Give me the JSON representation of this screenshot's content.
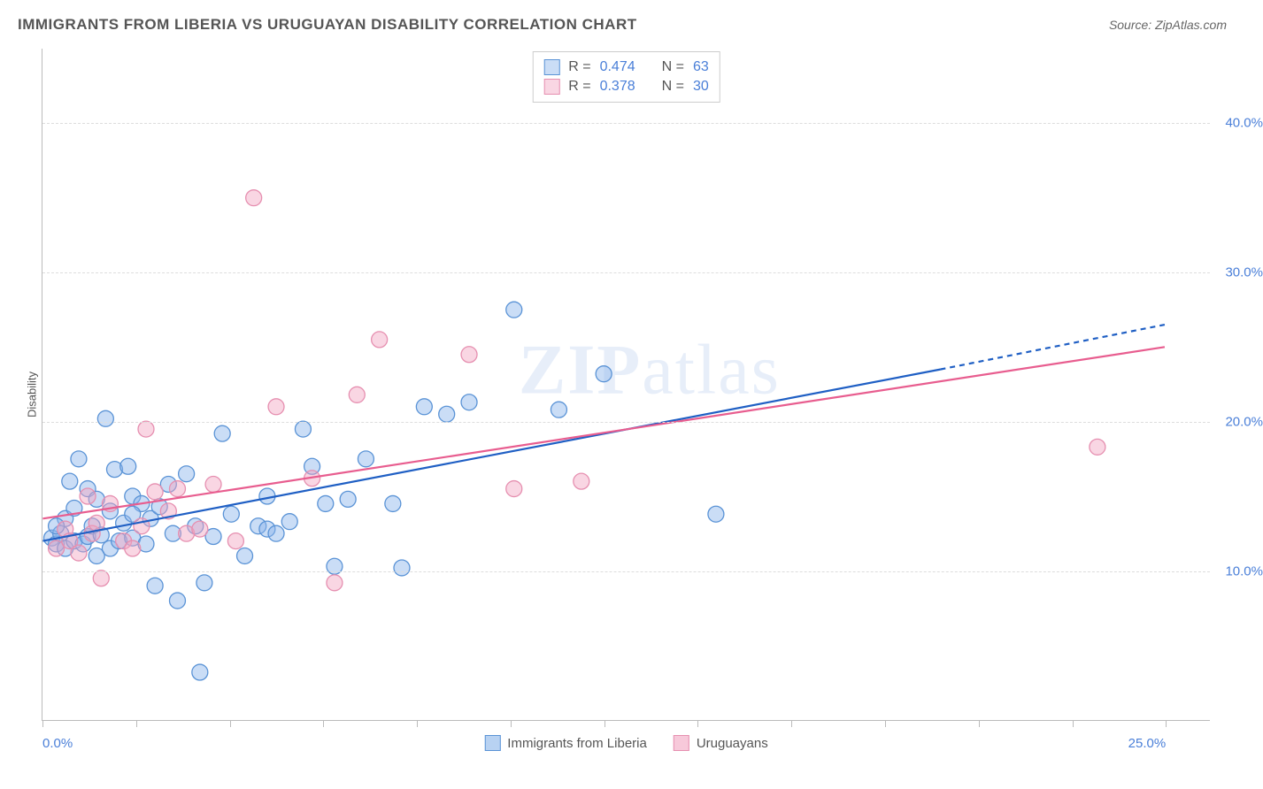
{
  "title": "IMMIGRANTS FROM LIBERIA VS URUGUAYAN DISABILITY CORRELATION CHART",
  "source_label": "Source: ZipAtlas.com",
  "ylabel": "Disability",
  "watermark": {
    "part1": "ZIP",
    "part2": "atlas"
  },
  "chart": {
    "type": "scatter",
    "xlim": [
      0,
      26
    ],
    "ylim": [
      0,
      45
    ],
    "x_ticks": [
      0,
      12.5,
      25
    ],
    "x_tick_labels": [
      "0.0%",
      "",
      "25.0%"
    ],
    "x_minor_ticks": [
      2.08,
      4.17,
      6.25,
      8.33,
      10.42,
      14.58,
      16.67,
      18.75,
      20.83,
      22.92
    ],
    "y_gridlines": [
      10,
      20,
      30,
      40
    ],
    "y_tick_labels": [
      "10.0%",
      "20.0%",
      "30.0%",
      "40.0%"
    ],
    "grid_color": "#dddddd",
    "background": "#ffffff",
    "marker_radius": 9,
    "marker_stroke_width": 1.3,
    "line_width": 2.2,
    "series": [
      {
        "name": "Immigrants from Liberia",
        "fill": "rgba(137,180,234,0.45)",
        "stroke": "#5a93d6",
        "line_color": "#1f5fc4",
        "R": "0.474",
        "N": "63",
        "regression": {
          "x1": 0,
          "y1": 12.0,
          "x2": 20,
          "y2": 23.5,
          "x3": 25,
          "y3": 26.5
        },
        "points": [
          [
            0.2,
            12.2
          ],
          [
            0.3,
            11.8
          ],
          [
            0.4,
            12.5
          ],
          [
            0.5,
            13.5
          ],
          [
            0.5,
            11.5
          ],
          [
            0.6,
            16.0
          ],
          [
            0.7,
            14.2
          ],
          [
            0.7,
            12.0
          ],
          [
            0.8,
            17.5
          ],
          [
            0.9,
            11.8
          ],
          [
            1.0,
            12.3
          ],
          [
            1.0,
            15.5
          ],
          [
            1.1,
            13.0
          ],
          [
            1.2,
            11.0
          ],
          [
            1.3,
            12.4
          ],
          [
            1.4,
            20.2
          ],
          [
            1.5,
            14.0
          ],
          [
            1.5,
            11.5
          ],
          [
            1.6,
            16.8
          ],
          [
            1.7,
            12.0
          ],
          [
            1.8,
            13.2
          ],
          [
            1.9,
            17.0
          ],
          [
            2.0,
            12.2
          ],
          [
            2.0,
            15.0
          ],
          [
            2.2,
            14.5
          ],
          [
            2.3,
            11.8
          ],
          [
            2.4,
            13.5
          ],
          [
            2.5,
            9.0
          ],
          [
            2.6,
            14.3
          ],
          [
            2.8,
            15.8
          ],
          [
            2.9,
            12.5
          ],
          [
            3.0,
            8.0
          ],
          [
            3.2,
            16.5
          ],
          [
            3.4,
            13.0
          ],
          [
            3.5,
            3.2
          ],
          [
            3.6,
            9.2
          ],
          [
            3.8,
            12.3
          ],
          [
            4.0,
            19.2
          ],
          [
            4.2,
            13.8
          ],
          [
            4.5,
            11.0
          ],
          [
            4.8,
            13.0
          ],
          [
            5.0,
            15.0
          ],
          [
            5.0,
            12.8
          ],
          [
            5.2,
            12.5
          ],
          [
            5.5,
            13.3
          ],
          [
            5.8,
            19.5
          ],
          [
            6.0,
            17.0
          ],
          [
            6.3,
            14.5
          ],
          [
            6.5,
            10.3
          ],
          [
            6.8,
            14.8
          ],
          [
            7.2,
            17.5
          ],
          [
            7.8,
            14.5
          ],
          [
            8.0,
            10.2
          ],
          [
            8.5,
            21.0
          ],
          [
            9.0,
            20.5
          ],
          [
            9.5,
            21.3
          ],
          [
            10.5,
            27.5
          ],
          [
            11.5,
            20.8
          ],
          [
            12.5,
            23.2
          ],
          [
            15.0,
            13.8
          ],
          [
            2.0,
            13.8
          ],
          [
            1.2,
            14.8
          ],
          [
            0.3,
            13.0
          ]
        ]
      },
      {
        "name": "Uruguayans",
        "fill": "rgba(242,165,193,0.45)",
        "stroke": "#e68fb0",
        "line_color": "#e85d8f",
        "R": "0.378",
        "N": "30",
        "regression": {
          "x1": 0,
          "y1": 13.5,
          "x2": 25,
          "y2": 25.0
        },
        "points": [
          [
            0.3,
            11.5
          ],
          [
            0.5,
            12.8
          ],
          [
            0.6,
            12.0
          ],
          [
            0.8,
            11.2
          ],
          [
            1.0,
            15.0
          ],
          [
            1.1,
            12.5
          ],
          [
            1.2,
            13.2
          ],
          [
            1.3,
            9.5
          ],
          [
            1.5,
            14.5
          ],
          [
            1.8,
            12.0
          ],
          [
            2.0,
            11.5
          ],
          [
            2.2,
            13.0
          ],
          [
            2.3,
            19.5
          ],
          [
            2.5,
            15.3
          ],
          [
            2.8,
            14.0
          ],
          [
            3.0,
            15.5
          ],
          [
            3.2,
            12.5
          ],
          [
            3.5,
            12.8
          ],
          [
            3.8,
            15.8
          ],
          [
            4.3,
            12.0
          ],
          [
            4.7,
            35.0
          ],
          [
            5.2,
            21.0
          ],
          [
            6.0,
            16.2
          ],
          [
            6.5,
            9.2
          ],
          [
            7.0,
            21.8
          ],
          [
            7.5,
            25.5
          ],
          [
            9.5,
            24.5
          ],
          [
            10.5,
            15.5
          ],
          [
            12.0,
            16.0
          ],
          [
            23.5,
            18.3
          ]
        ]
      }
    ]
  },
  "legend": {
    "items": [
      {
        "label": "Immigrants from Liberia",
        "fill": "rgba(137,180,234,0.6)",
        "stroke": "#5a93d6"
      },
      {
        "label": "Uruguayans",
        "fill": "rgba(242,165,193,0.6)",
        "stroke": "#e68fb0"
      }
    ]
  }
}
